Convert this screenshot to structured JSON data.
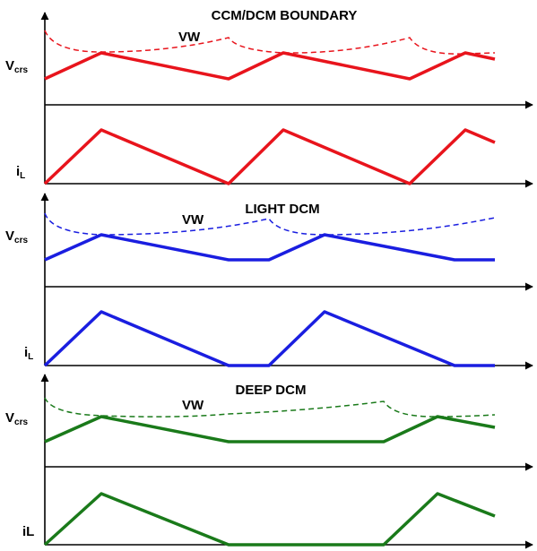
{
  "panels": [
    {
      "title": "CCM/DCM BOUNDARY",
      "color": "#e8141c",
      "vw_label": "VW",
      "vcrs_label": "V",
      "vcrs_sub": "crs",
      "il_label": "i",
      "il_sub": "L"
    },
    {
      "title": "LIGHT DCM",
      "color": "#1a1ee0",
      "vw_label": "VW",
      "vcrs_label": "V",
      "vcrs_sub": "crs",
      "il_label": "i",
      "il_sub": "L"
    },
    {
      "title": "DEEP DCM",
      "color": "#1a7a1a",
      "vw_label": "VW",
      "vcrs_label": "V",
      "vcrs_sub": "crs",
      "il_label": "iL",
      "il_sub": ""
    }
  ]
}
